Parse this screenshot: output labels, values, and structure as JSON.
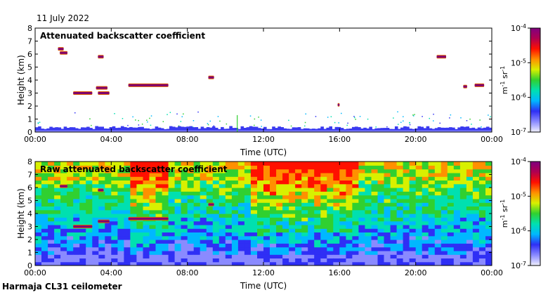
{
  "header": {
    "date": "11 July 2022"
  },
  "footer": {
    "site": "Harmaja CL31 ceilometer"
  },
  "colors": {
    "colormap": [
      "#f0f0ff",
      "#8a8aff",
      "#2f2ff5",
      "#00b8ff",
      "#00e0b0",
      "#30d030",
      "#d8f000",
      "#ff9000",
      "#ff1000",
      "#b00050",
      "#800080"
    ],
    "layer": "#800070",
    "layer_edge": "#e06000",
    "clutter": "#3a3af0"
  },
  "chart_data": [
    {
      "type": "heatmap",
      "title": "Attenuated backscatter coefficient",
      "xlabel": "Time (UTC)",
      "ylabel": "Height (km)",
      "xlim": [
        0,
        24
      ],
      "ylim": [
        0,
        8
      ],
      "x_tick_labels": [
        "00:00",
        "04:00",
        "08:00",
        "12:00",
        "16:00",
        "20:00",
        "00:00"
      ],
      "y_tick_labels": [
        "0",
        "1",
        "2",
        "3",
        "4",
        "5",
        "6",
        "7",
        "8"
      ],
      "colorbar": {
        "scale": "log",
        "range": [
          1e-07,
          0.0001
        ],
        "tick_labels": [
          "10-7",
          "10-6",
          "10-5",
          "10-4"
        ],
        "label": "m-1 sr-1"
      },
      "features": [
        {
          "kind": "surface-layer",
          "t_start": 0,
          "t_end": 24,
          "top_km": 0.4
        },
        {
          "kind": "cloud-layer",
          "t_start": 1.3,
          "t_end": 1.7,
          "height_km": 6.1
        },
        {
          "kind": "cloud-layer",
          "t_start": 1.2,
          "t_end": 1.5,
          "height_km": 6.4
        },
        {
          "kind": "cloud-layer",
          "t_start": 2.0,
          "t_end": 3.0,
          "height_km": 3.0
        },
        {
          "kind": "cloud-layer",
          "t_start": 3.3,
          "t_end": 3.6,
          "height_km": 5.8
        },
        {
          "kind": "cloud-layer",
          "t_start": 3.2,
          "t_end": 3.8,
          "height_km": 3.4
        },
        {
          "kind": "cloud-layer",
          "t_start": 3.3,
          "t_end": 3.9,
          "height_km": 3.0
        },
        {
          "kind": "cloud-layer",
          "t_start": 4.9,
          "t_end": 7.0,
          "height_km": 3.6
        },
        {
          "kind": "cloud-layer",
          "t_start": 9.1,
          "t_end": 9.4,
          "height_km": 4.2
        },
        {
          "kind": "cloud-layer",
          "t_start": 15.9,
          "t_end": 16.0,
          "height_km": 2.1
        },
        {
          "kind": "cloud-layer",
          "t_start": 21.1,
          "t_end": 21.6,
          "height_km": 5.8
        },
        {
          "kind": "cloud-layer",
          "t_start": 22.5,
          "t_end": 22.7,
          "height_km": 3.5
        },
        {
          "kind": "cloud-layer",
          "t_start": 23.1,
          "t_end": 23.6,
          "height_km": 3.6
        },
        {
          "kind": "spike",
          "t_start": 10.6,
          "t_end": 10.7,
          "height_km": 1.3
        }
      ]
    },
    {
      "type": "heatmap",
      "title": "Raw attenuated backscatter coefficient",
      "xlabel": "Time (UTC)",
      "ylabel": "Height (km)",
      "xlim": [
        0,
        24
      ],
      "ylim": [
        0,
        8
      ],
      "x_tick_labels": [
        "00:00",
        "04:00",
        "08:00",
        "12:00",
        "16:00",
        "20:00",
        "00:00"
      ],
      "y_tick_labels": [
        "0",
        "1",
        "2",
        "3",
        "4",
        "5",
        "6",
        "7",
        "8"
      ],
      "colorbar": {
        "scale": "log",
        "range": [
          1e-07,
          0.0001
        ],
        "tick_labels": [
          "10-7",
          "10-6",
          "10-5",
          "10-4"
        ],
        "label": "m-1 sr-1"
      },
      "features": [
        {
          "kind": "noise-high",
          "t_start": 5.0,
          "t_end": 7.0
        },
        {
          "kind": "noise-high",
          "t_start": 11.5,
          "t_end": 17.0
        },
        {
          "kind": "cloud-layer",
          "t_start": 1.3,
          "t_end": 1.7,
          "height_km": 6.1
        },
        {
          "kind": "cloud-layer",
          "t_start": 2.0,
          "t_end": 3.0,
          "height_km": 3.0
        },
        {
          "kind": "cloud-layer",
          "t_start": 3.3,
          "t_end": 3.6,
          "height_km": 5.8
        },
        {
          "kind": "cloud-layer",
          "t_start": 3.3,
          "t_end": 3.9,
          "height_km": 3.4
        },
        {
          "kind": "cloud-layer",
          "t_start": 4.9,
          "t_end": 7.0,
          "height_km": 3.6
        },
        {
          "kind": "cloud-layer",
          "t_start": 9.1,
          "t_end": 9.4,
          "height_km": 4.7
        }
      ]
    }
  ]
}
